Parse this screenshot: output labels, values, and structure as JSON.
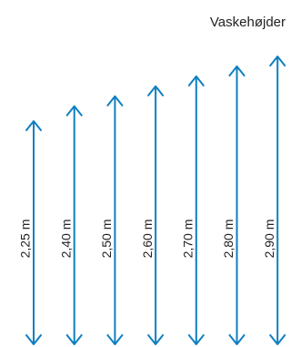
{
  "diagram": {
    "title": "Vaskehøjder",
    "arrow_color": "#0e7fc0",
    "label_color": "#222222",
    "arrows": [
      {
        "label": "2,25 m",
        "value": 2.25
      },
      {
        "label": "2,40 m",
        "value": 2.4
      },
      {
        "label": "2,50 m",
        "value": 2.5
      },
      {
        "label": "2,60 m",
        "value": 2.6
      },
      {
        "label": "2,70 m",
        "value": 2.7
      },
      {
        "label": "2,80 m",
        "value": 2.8
      },
      {
        "label": "2,90 m",
        "value": 2.9
      }
    ]
  }
}
